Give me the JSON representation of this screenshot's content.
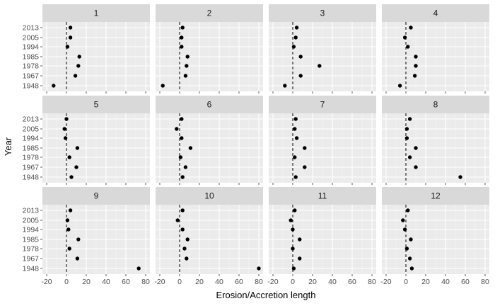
{
  "chart_data": {
    "type": "scatter",
    "facet_by": "panel",
    "xlabel": "Erosion/Accretion length",
    "ylabel": "Year",
    "xlim": [
      -20,
      80
    ],
    "xticks": [
      -20,
      0,
      20,
      40,
      60,
      80
    ],
    "x_tick_labels": [
      "-20",
      "0",
      "20",
      "40",
      "60",
      "80"
    ],
    "years": [
      "1948",
      "1967",
      "1978",
      "1985",
      "1994",
      "2005",
      "2013"
    ],
    "reference_line_x": 0,
    "reference_line_style": "dashed",
    "grid": true,
    "colors": {
      "panel_background": "#ebebeb",
      "strip_background": "#d9d9d9",
      "grid_major": "#ffffff",
      "point": "#000000"
    },
    "panels": [
      {
        "label": "1",
        "values": {
          "2013": 4,
          "2005": 4,
          "1994": 1,
          "1985": 13,
          "1978": 12,
          "1967": 9,
          "1948": -13
        }
      },
      {
        "label": "2",
        "values": {
          "2013": 3,
          "2005": 2,
          "1994": 2,
          "1985": 8,
          "1978": 7,
          "1967": 6,
          "1948": -17
        }
      },
      {
        "label": "3",
        "values": {
          "2013": 4,
          "2005": 3,
          "1994": 1,
          "1985": 8,
          "1978": 27,
          "1967": 8,
          "1948": -8
        }
      },
      {
        "label": "4",
        "values": {
          "2013": 5,
          "2005": -1,
          "1994": 2,
          "1985": 10,
          "1978": 10,
          "1967": 9,
          "1948": -6
        }
      },
      {
        "label": "5",
        "values": {
          "2013": 0,
          "2005": -2,
          "1994": -1,
          "1985": 11,
          "1978": 3,
          "1967": 10,
          "1948": 5
        }
      },
      {
        "label": "6",
        "values": {
          "2013": 2,
          "2005": -3,
          "1994": 2,
          "1985": 11,
          "1978": 1,
          "1967": 6,
          "1948": 3
        }
      },
      {
        "label": "7",
        "values": {
          "2013": 3,
          "2005": 2,
          "1994": 4,
          "1985": 12,
          "1978": 2,
          "1967": 12,
          "1948": 3
        }
      },
      {
        "label": "8",
        "values": {
          "2013": 4,
          "2005": 1,
          "1994": 1,
          "1985": 10,
          "1978": 4,
          "1967": 10,
          "1948": 55
        }
      },
      {
        "label": "9",
        "values": {
          "2013": 4,
          "2005": 1,
          "1994": 2,
          "1985": 12,
          "1978": 3,
          "1967": 11,
          "1948": 73
        }
      },
      {
        "label": "10",
        "values": {
          "2013": 3,
          "2005": -2,
          "1994": 3,
          "1985": 8,
          "1978": 5,
          "1967": 7,
          "1948": 80
        }
      },
      {
        "label": "11",
        "values": {
          "2013": 2,
          "2005": -2,
          "1994": 0,
          "1985": 7,
          "1978": 0,
          "1967": 7,
          "1948": 1
        }
      },
      {
        "label": "12",
        "values": {
          "2013": 2,
          "2005": -3,
          "1994": -1,
          "1985": 5,
          "1978": 1,
          "1967": 4,
          "1948": 6
        }
      }
    ]
  }
}
